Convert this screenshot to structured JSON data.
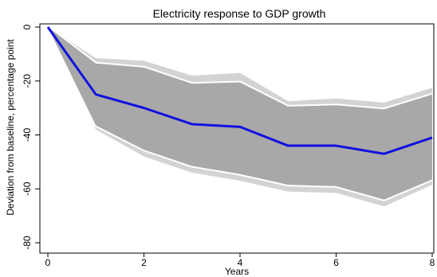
{
  "chart_data": {
    "type": "area",
    "title": "Electricity response to GDP growth",
    "xlabel": "Years",
    "ylabel": "Deviation from baseline, percentage point",
    "xlim": [
      0,
      8
    ],
    "ylim": [
      -80,
      0
    ],
    "x_ticks": [
      "0",
      "2",
      "4",
      "6",
      "8"
    ],
    "y_ticks": [
      "0",
      "-20",
      "-40",
      "-60",
      "-80"
    ],
    "x": [
      0,
      1,
      2,
      3,
      4,
      5,
      6,
      7,
      8
    ],
    "outer_band": {
      "color": "#d3d3d3",
      "upper": [
        0,
        -11.5,
        -12.5,
        -18,
        -17,
        -27.5,
        -26.5,
        -28,
        -22.5
      ],
      "lower": [
        0,
        -38,
        -48,
        -54,
        -57,
        -61,
        -61.5,
        -66.5,
        -58.5
      ]
    },
    "inner_band": {
      "color": "#a8a8a8",
      "upper": [
        0,
        -13.5,
        -15,
        -21,
        -20.5,
        -29.5,
        -29,
        -30.5,
        -25
      ],
      "lower": [
        0,
        -36.5,
        -45.5,
        -51.5,
        -54.5,
        -58.5,
        -59,
        -64,
        -56.5
      ]
    },
    "series": [
      {
        "color": "#1010e0",
        "values": [
          0,
          -25,
          -30,
          -36,
          -37,
          -44,
          -44,
          -47,
          -41
        ]
      }
    ]
  }
}
